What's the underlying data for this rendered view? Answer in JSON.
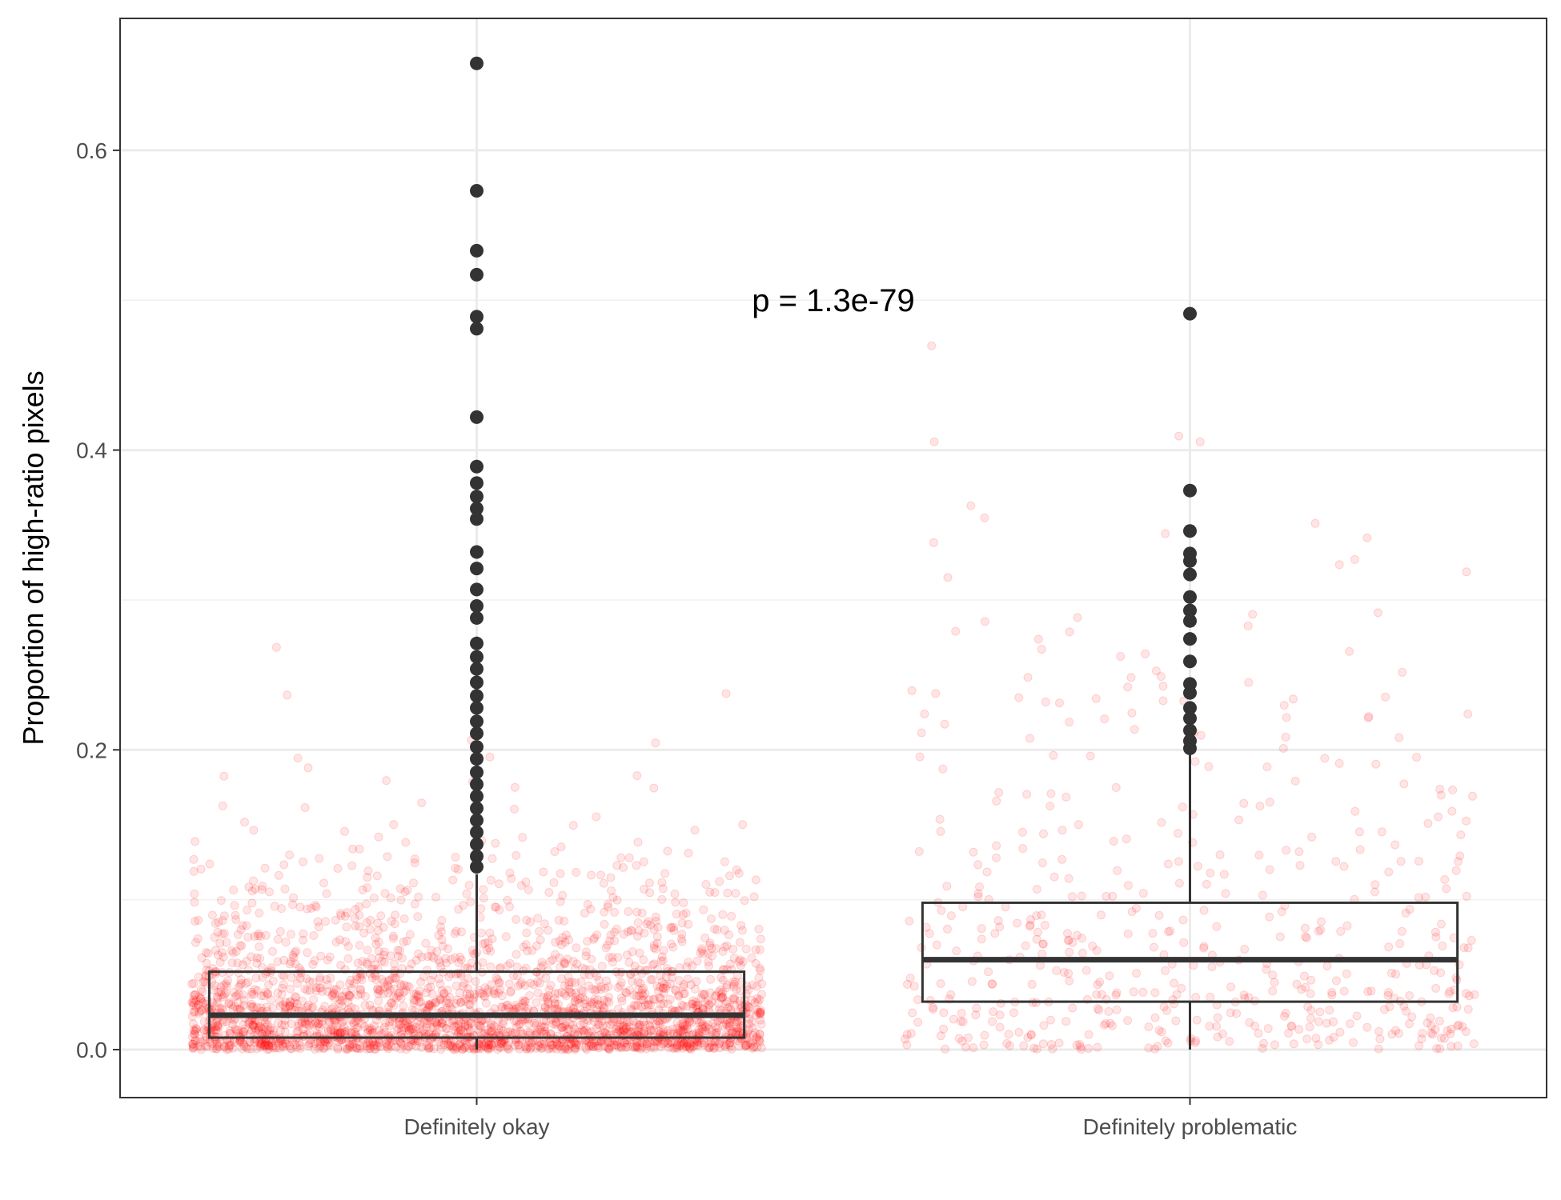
{
  "chart_data": {
    "type": "boxplot",
    "title": "",
    "xlabel": "",
    "ylabel": "Proportion of high-ratio pixels",
    "ylim": [
      -0.032,
      0.688
    ],
    "y_ticks": [
      0.0,
      0.2,
      0.4,
      0.6
    ],
    "y_tick_labels": [
      "0.0",
      "0.2",
      "0.4",
      "0.6"
    ],
    "grid": true,
    "categories": [
      "Definitely okay",
      "Definitely problematic"
    ],
    "annotation": {
      "text": "p = 1.3e-79",
      "x": 1.5,
      "y": 0.5
    },
    "jitter_color": "#ff0000",
    "box_color": "#333333",
    "boxes": [
      {
        "name": "Definitely okay",
        "q1": 0.008,
        "median": 0.023,
        "q3": 0.052,
        "whisker_low": 0.0,
        "whisker_high": 0.117,
        "outliers": [
          0.658,
          0.573,
          0.533,
          0.517,
          0.489,
          0.481,
          0.422,
          0.389,
          0.378,
          0.369,
          0.361,
          0.354,
          0.332,
          0.321,
          0.307,
          0.296,
          0.288,
          0.271,
          0.262,
          0.254,
          0.245,
          0.236,
          0.228,
          0.219,
          0.211,
          0.202,
          0.194,
          0.185,
          0.177,
          0.169,
          0.161,
          0.153,
          0.145,
          0.137,
          0.129,
          0.122
        ]
      },
      {
        "name": "Definitely problematic",
        "q1": 0.032,
        "median": 0.06,
        "q3": 0.098,
        "whisker_low": 0.0,
        "whisker_high": 0.199,
        "outliers": [
          0.491,
          0.373,
          0.346,
          0.331,
          0.326,
          0.317,
          0.302,
          0.293,
          0.286,
          0.274,
          0.259,
          0.244,
          0.238,
          0.228,
          0.221,
          0.213,
          0.206,
          0.201
        ]
      }
    ]
  }
}
